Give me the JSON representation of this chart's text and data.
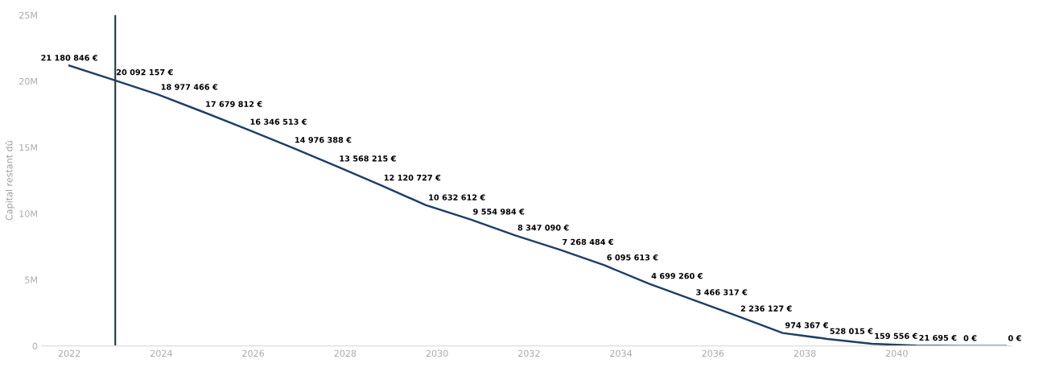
{
  "chart_data": {
    "type": "line",
    "ylabel": "Capital restant dû",
    "x": [
      2022,
      2022.97,
      2023.94,
      2024.91,
      2025.88,
      2026.85,
      2027.82,
      2028.79,
      2029.76,
      2030.73,
      2031.7,
      2032.67,
      2033.64,
      2034.61,
      2035.58,
      2036.55,
      2037.52,
      2038.49,
      2039.46,
      2040.43,
      2041.4,
      2042.37
    ],
    "series": [
      {
        "color": "#1f3f66",
        "values": [
          21180846,
          20092157,
          18977466,
          17679812,
          16346513,
          14976388,
          13568215,
          12120727,
          10632612,
          9554984,
          8347090,
          7268484,
          6095613,
          4699260,
          3466317,
          2236127,
          974367,
          528015,
          159556,
          21695,
          0,
          0
        ],
        "value_labels": [
          "21 180 846 €",
          "20 092 157 €",
          "18 977 466 €",
          "17 679 812 €",
          "16 346 513 €",
          "14 976 388 €",
          "13 568 215 €",
          "12 120 727 €",
          "10 632 612 €",
          "9 554 984 €",
          "8 347 090 €",
          "7 268 484 €",
          "6 095 613 €",
          "4 699 260 €",
          "3 466 317 €",
          "2 236 127 €",
          "974 367 €",
          "528 015 €",
          "159 556 €",
          "21 695 €",
          "0 €",
          "0 €"
        ]
      }
    ],
    "xlim": [
      2021.4,
      2042.5
    ],
    "xticks": [
      2022,
      2024,
      2026,
      2028,
      2030,
      2032,
      2034,
      2036,
      2038,
      2040
    ],
    "ylim": [
      0,
      25000000
    ],
    "yticks": [
      {
        "value": 0,
        "label": "0"
      },
      {
        "value": 5000000,
        "label": "5M"
      },
      {
        "value": 10000000,
        "label": "10M"
      },
      {
        "value": 15000000,
        "label": "15M"
      },
      {
        "value": 20000000,
        "label": "20M"
      },
      {
        "value": 25000000,
        "label": "25M"
      }
    ],
    "ref_lines": [
      {
        "axis": "x",
        "value": 2023,
        "color": "#1a3c3c"
      }
    ],
    "grid": false,
    "legend": false,
    "marker": "none",
    "line_style": "solid"
  }
}
